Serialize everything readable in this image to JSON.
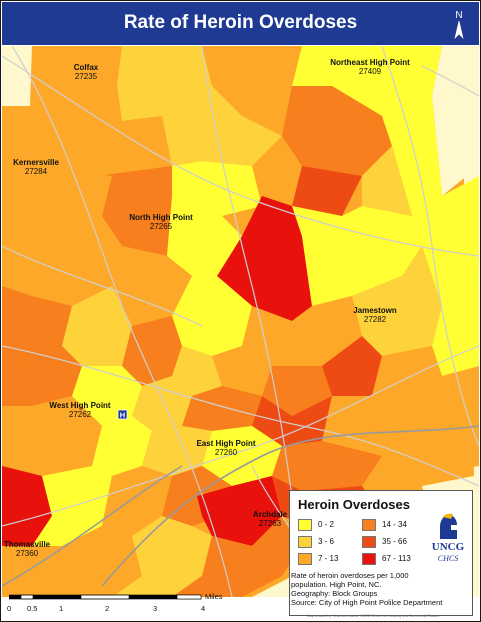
{
  "header": {
    "title": "Rate of Heroin Overdoses",
    "north_label": "N"
  },
  "places": [
    {
      "name": "Colfax",
      "zip": "27235"
    },
    {
      "name": "Northeast High Point",
      "zip": "27409"
    },
    {
      "name": "Kernersville",
      "zip": "27284"
    },
    {
      "name": "North High Point",
      "zip": "27265"
    },
    {
      "name": "Jamestown",
      "zip": "27282"
    },
    {
      "name": "West High Point",
      "zip": "27262"
    },
    {
      "name": "East High Point",
      "zip": "27260"
    },
    {
      "name": "Archdale",
      "zip": "27263"
    },
    {
      "name": "Thomasville",
      "zip": "27360"
    }
  ],
  "hospital_marker": "H",
  "legend": {
    "title": "Heroin Overdoses",
    "classes": [
      {
        "label": "0 - 2",
        "color": "#ffff33"
      },
      {
        "label": "3 - 6",
        "color": "#fed23a"
      },
      {
        "label": "7 - 13",
        "color": "#fea829"
      },
      {
        "label": "14 - 34",
        "color": "#f77f1d"
      },
      {
        "label": "35 - 66",
        "color": "#ee4a14"
      },
      {
        "label": "67 - 113",
        "color": "#e8110c"
      }
    ]
  },
  "logo": {
    "name": "UNCG",
    "subtitle": "CHCS"
  },
  "notes": [
    "Rate of heroin overdoses per 1,000",
    "population. High Point, NC.",
    "Geography: Block Groups",
    "Source: City of High Point Polilce Department"
  ],
  "scale": {
    "unit": "Miles",
    "ticks": [
      "0",
      "0.5",
      "1",
      "2",
      "3",
      "4"
    ]
  },
  "credit": "Map created by: Unknown author, UNCG Center for Housing and Community Studies",
  "colors": {
    "title_bar": "#1f3a93",
    "road": "#cfcfcf",
    "background_county": "#fffbd0"
  }
}
